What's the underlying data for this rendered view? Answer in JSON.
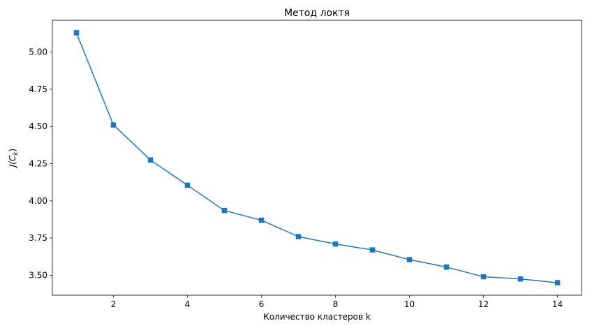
{
  "chart_data": {
    "type": "line",
    "title": "Метод локтя",
    "xlabel": "Количество кластеров k",
    "ylabel_main": "J(C",
    "ylabel_sub": "k",
    "ylabel_close": ")",
    "x": [
      1,
      2,
      3,
      4,
      5,
      6,
      7,
      8,
      9,
      10,
      11,
      12,
      13,
      14
    ],
    "series": [
      {
        "values": [
          5.13,
          4.51,
          4.275,
          4.105,
          3.935,
          3.87,
          3.76,
          3.71,
          3.67,
          3.605,
          3.555,
          3.49,
          3.475,
          3.45
        ],
        "color": "#1f77b4",
        "marker": "square"
      }
    ],
    "xlim": [
      0.35,
      14.65
    ],
    "ylim": [
      3.366,
      5.214
    ],
    "xticks": [
      2,
      4,
      6,
      8,
      10,
      12,
      14
    ],
    "xtick_labels": [
      "2",
      "4",
      "6",
      "8",
      "10",
      "12",
      "14"
    ],
    "yticks": [
      3.5,
      3.75,
      4.0,
      4.25,
      4.5,
      4.75,
      5.0
    ],
    "ytick_labels": [
      "3.50",
      "3.75",
      "4.00",
      "4.25",
      "4.50",
      "4.75",
      "5.00"
    ],
    "grid": false,
    "legend": "none"
  }
}
